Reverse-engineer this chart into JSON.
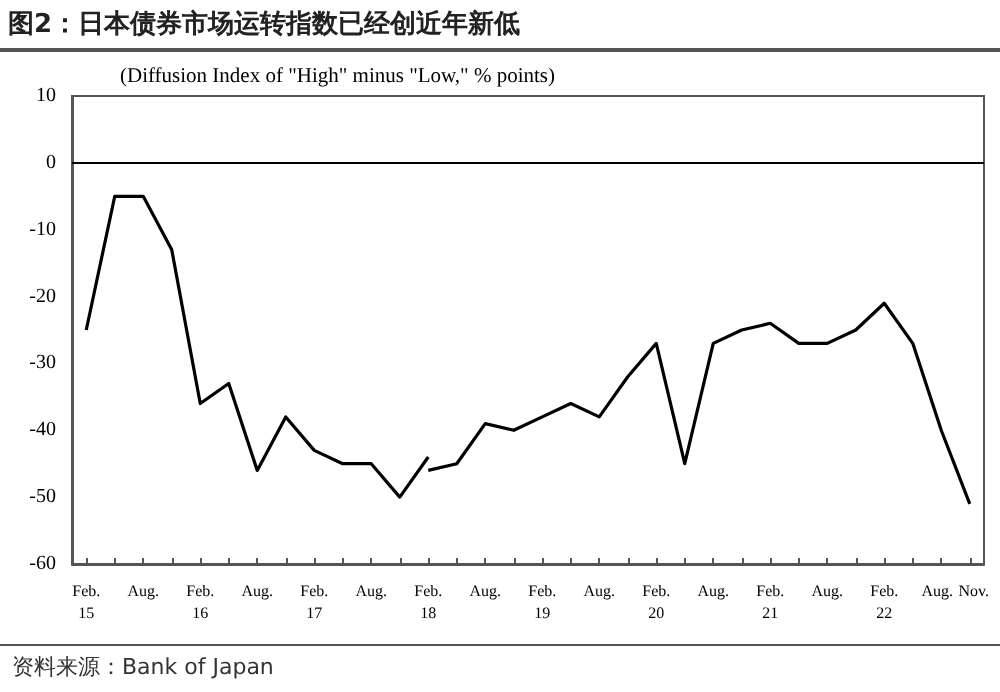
{
  "chart_data": {
    "type": "line",
    "title": "图2：日本债券市场运转指数已经创近年新低",
    "ylabel": "(Diffusion Index of \"High\" minus \"Low,\" % points)",
    "categories": [
      "Feb.\n15",
      null,
      "Aug.",
      null,
      "Feb.\n16",
      null,
      "Aug.",
      null,
      "Feb.\n17",
      null,
      "Aug.",
      null,
      "Feb.\n18",
      null,
      "Aug.",
      null,
      "Feb.\n19",
      null,
      "Aug.",
      null,
      "Feb.\n20",
      null,
      "Aug.",
      null,
      "Feb.\n21",
      null,
      "Aug.",
      null,
      "Feb.\n22",
      null,
      "Aug.",
      "Nov."
    ],
    "series": [
      {
        "color": "#000000",
        "values": [
          -25,
          -5,
          -5,
          -13,
          -36,
          -33,
          -46,
          -38,
          -43,
          -45,
          -45,
          -50,
          -44,
          null,
          null,
          null,
          null,
          null,
          null,
          null,
          null,
          null,
          null,
          null,
          null,
          null,
          null,
          null,
          null,
          null,
          null,
          null
        ]
      },
      {
        "color": "#000000",
        "values": [
          null,
          null,
          null,
          null,
          null,
          null,
          null,
          null,
          null,
          null,
          null,
          null,
          -46,
          -45,
          -39,
          -40,
          -38,
          -36,
          -38,
          -32,
          -27,
          -45,
          -27,
          -25,
          -24,
          -27,
          -27,
          -25,
          -21,
          -27,
          -40,
          -51
        ]
      }
    ],
    "ylim": [
      -60,
      10
    ],
    "yticks": [
      -60,
      -50,
      -40,
      -30,
      -20,
      -10,
      0,
      10
    ],
    "ref_lines": [
      {
        "axis": "y",
        "value": 0,
        "color": "#000000"
      }
    ],
    "grid": false,
    "marker": "none",
    "line_style": "solid",
    "annotations": [
      "资料来源：Bank of Japan"
    ]
  }
}
